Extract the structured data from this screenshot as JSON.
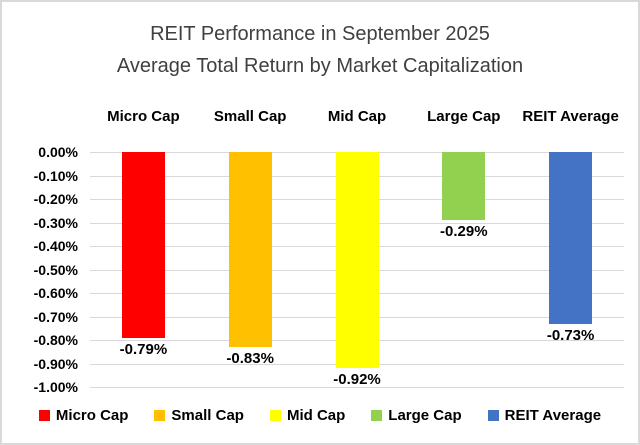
{
  "title": {
    "line1": "REIT Performance in September 2025",
    "line2": "Average Total Return by Market Capitalization"
  },
  "colors": {
    "gridline": "#d9d9d9",
    "frame_border": "#d9d9d9",
    "title_text": "#404040",
    "label_text": "#000000"
  },
  "chart_data": {
    "type": "bar",
    "title": "REIT Performance in September 2025",
    "subtitle": "Average Total Return by Market Capitalization",
    "categories": [
      "Micro Cap",
      "Small Cap",
      "Mid Cap",
      "Large Cap",
      "REIT Average"
    ],
    "values": [
      -0.79,
      -0.83,
      -0.92,
      -0.29,
      -0.73
    ],
    "data_labels": [
      "-0.79%",
      "-0.83%",
      "-0.92%",
      "-0.29%",
      "-0.73%"
    ],
    "bar_colors": [
      "#FF0000",
      "#FFC000",
      "#FFFF00",
      "#92D050",
      "#4472C4"
    ],
    "y_ticks": [
      "0.00%",
      "-0.10%",
      "-0.20%",
      "-0.30%",
      "-0.40%",
      "-0.50%",
      "-0.60%",
      "-0.70%",
      "-0.80%",
      "-0.90%",
      "-1.00%"
    ],
    "ylim": [
      -1.0,
      0.0
    ],
    "xlabel": "",
    "ylabel": "",
    "grid": true,
    "category_label_position": "top",
    "legend_position": "bottom",
    "legend": [
      {
        "label": "Micro Cap",
        "color": "#FF0000"
      },
      {
        "label": "Small Cap",
        "color": "#FFC000"
      },
      {
        "label": "Mid Cap",
        "color": "#FFFF00"
      },
      {
        "label": "Large Cap",
        "color": "#92D050"
      },
      {
        "label": "REIT Average",
        "color": "#4472C4"
      }
    ]
  }
}
